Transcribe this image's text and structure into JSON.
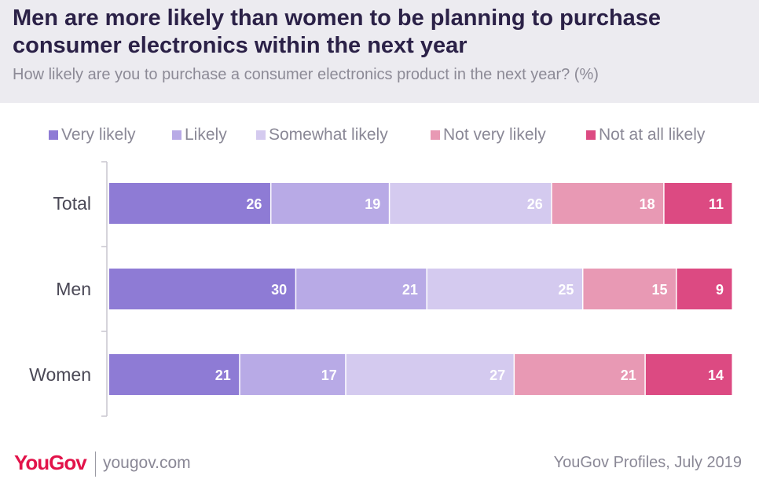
{
  "colors": {
    "series": [
      "#8e7bd5",
      "#b8aae6",
      "#d4caef",
      "#e899b4",
      "#dc4a82"
    ],
    "header_bg": "#ecebf0",
    "title": "#2b2147",
    "brand": "#e2134a"
  },
  "header": {
    "title": "Men are more likely than women to be planning to purchase consumer electronics within the next year",
    "subtitle": "How likely are you to purchase a consumer electronics product in the next year? (%)"
  },
  "chart_data": {
    "type": "bar",
    "orientation": "horizontal",
    "stacked": true,
    "title": "Men are more likely than women to be planning to purchase consumer electronics within the next year",
    "subtitle": "How likely are you to purchase a consumer electronics product in the next year? (%)",
    "xlabel": "",
    "ylabel": "",
    "xlim": [
      0,
      100
    ],
    "categories": [
      "Total",
      "Men",
      "Women"
    ],
    "series": [
      {
        "name": "Very likely",
        "values": [
          26,
          30,
          21
        ]
      },
      {
        "name": "Likely",
        "values": [
          19,
          21,
          17
        ]
      },
      {
        "name": "Somewhat likely",
        "values": [
          26,
          25,
          27
        ]
      },
      {
        "name": "Not very likely",
        "values": [
          18,
          15,
          21
        ]
      },
      {
        "name": "Not at all likely",
        "values": [
          11,
          9,
          14
        ]
      }
    ],
    "legend": "top"
  },
  "footer": {
    "logo": "YouGov",
    "site": "yougov.com",
    "source": "YouGov Profiles, July 2019"
  }
}
